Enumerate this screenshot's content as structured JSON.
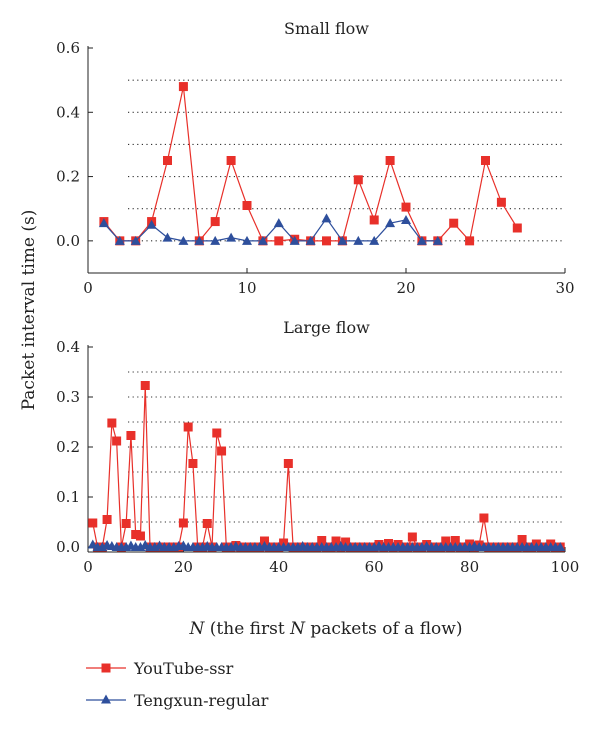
{
  "ylabel": "Packet interval time (s)",
  "xlabel": {
    "italic": "N",
    "rest": " (the first ",
    "italic2": "N",
    "rest2": " packets of a flow)"
  },
  "legend": {
    "youtube": "YouTube-ssr",
    "tengxun": "Tengxun-regular"
  },
  "colors": {
    "youtube": "#e8302a",
    "tengxun": "#2e4f9c"
  },
  "chart_data": [
    {
      "type": "line",
      "title": "Small flow",
      "xlim": [
        0,
        30
      ],
      "ylim": [
        -0.1,
        0.6
      ],
      "xticks": [
        0,
        10,
        20,
        30
      ],
      "yticks": [
        0.0,
        0.2,
        0.4,
        0.6
      ],
      "gridlines": [
        0.0,
        0.1,
        0.2,
        0.3,
        0.4,
        0.5
      ],
      "series": [
        {
          "name": "YouTube-ssr",
          "marker": "square",
          "x": [
            1,
            2,
            3,
            4,
            5,
            6,
            7,
            8,
            9,
            10,
            11,
            12,
            13,
            14,
            15,
            16,
            17,
            18,
            19,
            20,
            21,
            22,
            23,
            24,
            25,
            26,
            27
          ],
          "y": [
            0.06,
            0.0,
            0.0,
            0.06,
            0.25,
            0.48,
            0.0,
            0.06,
            0.25,
            0.11,
            0.0,
            0.0,
            0.005,
            0.0,
            0.0,
            0.0,
            0.19,
            0.065,
            0.25,
            0.105,
            0.0,
            0.0,
            0.055,
            0.0,
            0.25,
            0.12,
            0.04
          ]
        },
        {
          "name": "Tengxun-regular",
          "marker": "triangle",
          "x": [
            1,
            2,
            3,
            4,
            5,
            6,
            7,
            8,
            9,
            10,
            11,
            12,
            13,
            14,
            15,
            16,
            17,
            18,
            19,
            20,
            21,
            22
          ],
          "y": [
            0.055,
            0.0,
            0.0,
            0.05,
            0.01,
            0.0,
            0.0,
            0.0,
            0.01,
            0.0,
            0.0,
            0.055,
            0.0,
            0.0,
            0.07,
            0.0,
            0.0,
            0.0,
            0.055,
            0.065,
            0.0,
            0.0
          ]
        }
      ]
    },
    {
      "type": "line",
      "title": "Large flow",
      "xlim": [
        0,
        100
      ],
      "ylim": [
        -0.01,
        0.4
      ],
      "xticks": [
        0,
        20,
        40,
        60,
        80,
        100
      ],
      "yticks": [
        0.0,
        0.1,
        0.2,
        0.3,
        0.4
      ],
      "gridlines": [
        0.0,
        0.05,
        0.1,
        0.15,
        0.2,
        0.25,
        0.3,
        0.35
      ],
      "series": [
        {
          "name": "YouTube-ssr",
          "marker": "square",
          "x": [
            1,
            2,
            3,
            4,
            5,
            6,
            7,
            8,
            9,
            10,
            11,
            12,
            13,
            14,
            15,
            16,
            17,
            18,
            19,
            20,
            21,
            22,
            23,
            24,
            25,
            26,
            27,
            28,
            29,
            30,
            31,
            32,
            33,
            34,
            35,
            36,
            37,
            38,
            39,
            40,
            41,
            42,
            43,
            44,
            45,
            46,
            47,
            48,
            49,
            50,
            51,
            52,
            53,
            54,
            55,
            56,
            57,
            58,
            59,
            60,
            61,
            62,
            63,
            64,
            65,
            66,
            67,
            68,
            69,
            70,
            71,
            72,
            73,
            74,
            75,
            76,
            77,
            78,
            79,
            80,
            81,
            82,
            83,
            84,
            85,
            86,
            87,
            88,
            89,
            90,
            91,
            92,
            93,
            94,
            95,
            96,
            97,
            98,
            99
          ],
          "y": [
            0.048,
            0.0,
            0.0,
            0.055,
            0.248,
            0.212,
            0.0,
            0.047,
            0.223,
            0.025,
            0.022,
            0.323,
            0.0,
            0.0,
            0.0,
            0.0,
            0.0,
            0.0,
            0.0,
            0.048,
            0.24,
            0.167,
            0.0,
            0.0,
            0.047,
            0.0,
            0.228,
            0.192,
            0.0,
            0.0,
            0.003,
            0.0,
            0.0,
            0.0,
            0.0,
            0.0,
            0.012,
            0.0,
            0.0,
            0.0,
            0.008,
            0.167,
            0.0,
            0.0,
            0.0,
            0.0,
            0.0,
            0.0,
            0.013,
            0.0,
            0.0,
            0.012,
            0.0,
            0.01,
            0.0,
            0.0,
            0.0,
            0.0,
            0.0,
            0.0,
            0.005,
            0.0,
            0.007,
            0.0,
            0.005,
            0.0,
            0.0,
            0.02,
            0.0,
            0.0,
            0.005,
            0.0,
            0.0,
            0.0,
            0.012,
            0.0,
            0.013,
            0.0,
            0.0,
            0.006,
            0.0,
            0.004,
            0.058,
            0.0,
            0.0,
            0.0,
            0.0,
            0.0,
            0.0,
            0.0,
            0.015,
            0.0,
            0.0,
            0.006,
            0.0,
            0.0,
            0.006,
            0.0,
            0.0
          ]
        },
        {
          "name": "Tengxun-regular",
          "marker": "triangle",
          "x": [
            1,
            2,
            3,
            4,
            5,
            6,
            7,
            8,
            9,
            10,
            11,
            12,
            13,
            14,
            15,
            16,
            17,
            18,
            19,
            20,
            21,
            22,
            23,
            24,
            25,
            26,
            27,
            28,
            29,
            30,
            31,
            32,
            33,
            34,
            35,
            36,
            37,
            38,
            39,
            40,
            41,
            42,
            43,
            44,
            45,
            46,
            47,
            48,
            49,
            50,
            51,
            52,
            53,
            54,
            55,
            56,
            57,
            58,
            59,
            60,
            61,
            62,
            63,
            64,
            65,
            66,
            67,
            68,
            69,
            70,
            71,
            72,
            73,
            74,
            75,
            76,
            77,
            78,
            79,
            80,
            81,
            82,
            83,
            84,
            85,
            86,
            87,
            88,
            89,
            90,
            91,
            92,
            93,
            94,
            95,
            96,
            97,
            98,
            99
          ],
          "y": [
            0.005,
            0.0,
            0.0,
            0.004,
            0.002,
            0.0,
            0.0,
            0.0,
            0.003,
            0.0,
            0.0,
            0.004,
            0.0,
            0.0,
            0.003,
            0.0,
            0.0,
            0.0,
            0.002,
            0.003,
            0.0,
            0.0,
            0.0,
            0.0,
            0.002,
            0.0,
            0.0,
            0.0,
            0.0,
            0.0,
            0.002,
            0.0,
            0.0,
            0.0,
            0.0,
            0.0,
            0.002,
            0.0,
            0.0,
            0.0,
            0.0,
            0.0,
            0.0,
            0.0,
            0.002,
            0.0,
            0.0,
            0.0,
            0.0,
            0.0,
            0.0,
            0.0,
            0.002,
            0.0,
            0.0,
            0.0,
            0.0,
            0.0,
            0.0,
            0.0,
            0.002,
            0.0,
            0.0,
            0.0,
            0.0,
            0.0,
            0.0,
            0.0,
            0.0,
            0.0,
            0.002,
            0.0,
            0.0,
            0.0,
            0.0,
            0.0,
            0.0,
            0.0,
            0.0,
            0.0,
            0.002,
            0.0,
            0.0,
            0.0,
            0.0,
            0.0,
            0.0,
            0.0,
            0.0,
            0.0,
            0.0,
            0.0,
            0.0,
            0.0,
            0.0,
            0.0,
            0.0,
            0.0,
            0.0
          ]
        }
      ]
    }
  ]
}
